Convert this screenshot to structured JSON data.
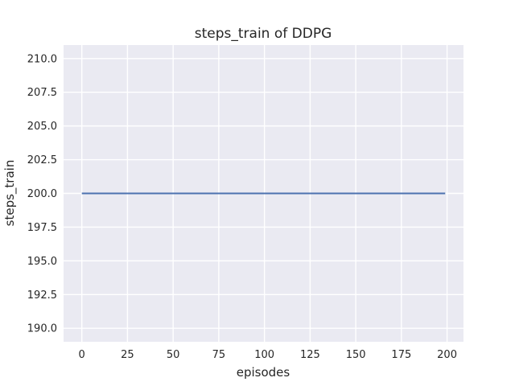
{
  "chart_data": {
    "type": "line",
    "title": "steps_train of DDPG",
    "xlabel": "episodes",
    "ylabel": "steps_train",
    "xlim": [
      -10,
      209
    ],
    "ylim": [
      189,
      211
    ],
    "xticks": [
      0,
      25,
      50,
      75,
      100,
      125,
      150,
      175,
      200
    ],
    "xtick_labels": [
      "0",
      "25",
      "50",
      "75",
      "100",
      "125",
      "150",
      "175",
      "200"
    ],
    "yticks": [
      190.0,
      192.5,
      195.0,
      197.5,
      200.0,
      202.5,
      205.0,
      207.5,
      210.0
    ],
    "ytick_labels": [
      "190.0",
      "192.5",
      "195.0",
      "197.5",
      "200.0",
      "202.5",
      "205.0",
      "207.5",
      "210.0"
    ],
    "grid": true,
    "legend": false,
    "series": [
      {
        "name": "steps_train",
        "color": "#4c72b0",
        "x": [
          0,
          199
        ],
        "y": [
          200,
          200
        ],
        "note": "constant value 200 for every episode from 0 to 199"
      }
    ],
    "colors": {
      "figure_background": "#ffffff",
      "plot_background": "#eaeaf2",
      "gridline": "#ffffff",
      "text": "#262626",
      "line": "#4c72b0"
    }
  }
}
